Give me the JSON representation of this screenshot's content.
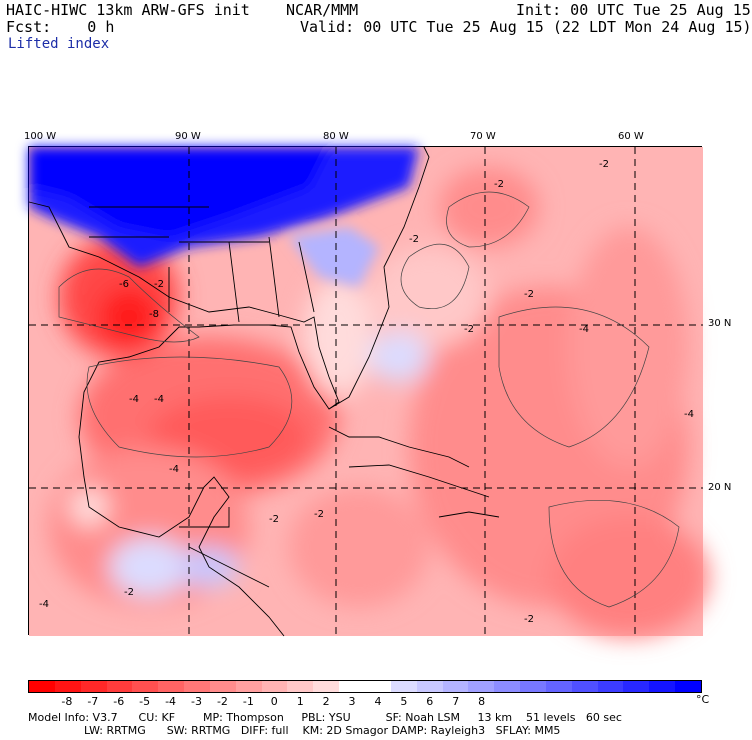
{
  "header": {
    "model_line": "HAIC-HIWC 13km ARW-GFS init    NCAR/MMM",
    "init_line": "Init: 00 UTC Tue 25 Aug 15",
    "fcst_line": "Fcst:    0 h",
    "valid_line": "Valid: 00 UTC Tue 25 Aug 15 (22 LDT Mon 24 Aug 15)",
    "field_name": "Lifted index"
  },
  "map": {
    "longitude_labels": [
      "100 W",
      "90 W",
      "80 W",
      "70 W",
      "60 W"
    ],
    "latitude_labels": [
      "30 N",
      "20 N"
    ],
    "contour_labels": [
      "-2",
      "-4",
      "-6",
      "-8"
    ]
  },
  "colorbar": {
    "ticks": [
      "-8",
      "-7",
      "-6",
      "-5",
      "-4",
      "-3",
      "-2",
      "-1",
      "0",
      "1",
      "2",
      "3",
      "4",
      "5",
      "6",
      "7",
      "8"
    ],
    "unit": "°C",
    "colors": [
      "#ff0000",
      "#ff1414",
      "#ff2828",
      "#ff3c3c",
      "#ff5050",
      "#ff6464",
      "#ff7878",
      "#ff8c8c",
      "#ffa0a0",
      "#ffb4b4",
      "#ffc8c8",
      "#ffdcdc",
      "#ffffff",
      "#ffffff",
      "#dcdcff",
      "#c8c8ff",
      "#b4b4ff",
      "#a0a0ff",
      "#8c8cff",
      "#7878ff",
      "#6464ff",
      "#5050ff",
      "#3c3cff",
      "#2828ff",
      "#1414ff",
      "#0000ff"
    ]
  },
  "model_info": {
    "line1": "Model Info: V3.7      CU: KF        MP: Thompson     PBL: YSU          SF: Noah LSM     13 km    51 levels   60 sec",
    "line2": "                LW: RRTMG      SW: RRTMG   DIFF: full    KM: 2D Smagor DAMP: Rayleigh3   SFLAY: MM5"
  }
}
